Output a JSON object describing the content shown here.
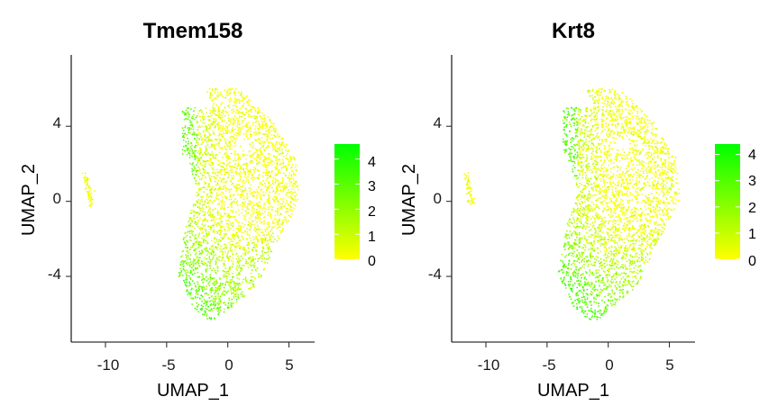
{
  "chart_data": [
    {
      "type": "scatter",
      "title": "Tmem158",
      "xlabel": "UMAP_1",
      "ylabel": "UMAP_2",
      "xlim": [
        -12.8,
        7.1
      ],
      "ylim": [
        -7.5,
        7.8
      ],
      "x_ticks": [
        -10,
        -5,
        0,
        5
      ],
      "y_ticks": [
        -4,
        0,
        4
      ],
      "x_tick_labels": [
        "-10",
        "-5",
        "0",
        "5"
      ],
      "y_tick_labels": [
        "-4",
        "0",
        "4"
      ],
      "grid": false,
      "legend": {
        "position": "right",
        "type": "color-gradient",
        "colors": [
          "#ffff00",
          "#00ff00"
        ],
        "range": [
          0,
          4.6
        ],
        "ticks": [
          0,
          1,
          2,
          3,
          4
        ],
        "tick_labels": [
          "0",
          "1",
          "2",
          "3",
          "4"
        ]
      },
      "clusters": [
        {
          "x": [
            -11.8,
            -11.0
          ],
          "y": [
            -0.2,
            1.5
          ],
          "expression": "low"
        },
        {
          "x": [
            -4.0,
            6.0
          ],
          "y": [
            -6.3,
            6.0
          ],
          "expression": "higher in lower-left region, lowest on right edge"
        }
      ]
    },
    {
      "type": "scatter",
      "title": "Krt8",
      "xlabel": "UMAP_1",
      "ylabel": "UMAP_2",
      "xlim": [
        -12.8,
        7.1
      ],
      "ylim": [
        -7.5,
        7.8
      ],
      "x_ticks": [
        -10,
        -5,
        0,
        5
      ],
      "y_ticks": [
        -4,
        0,
        4
      ],
      "x_tick_labels": [
        "-10",
        "-5",
        "0",
        "5"
      ],
      "y_tick_labels": [
        "-4",
        "0",
        "4"
      ],
      "grid": false,
      "legend": {
        "position": "right",
        "type": "color-gradient",
        "colors": [
          "#ffff00",
          "#00ff00"
        ],
        "range": [
          0,
          4.4
        ],
        "ticks": [
          0,
          1,
          2,
          3,
          4
        ],
        "tick_labels": [
          "0",
          "1",
          "2",
          "3",
          "4"
        ]
      },
      "clusters": [
        {
          "x": [
            -11.8,
            -11.0
          ],
          "y": [
            -0.2,
            1.5
          ],
          "expression": "low"
        },
        {
          "x": [
            -4.0,
            6.0
          ],
          "y": [
            -6.3,
            6.0
          ],
          "expression": "higher in lower-left region, lowest on right edge"
        }
      ]
    }
  ]
}
